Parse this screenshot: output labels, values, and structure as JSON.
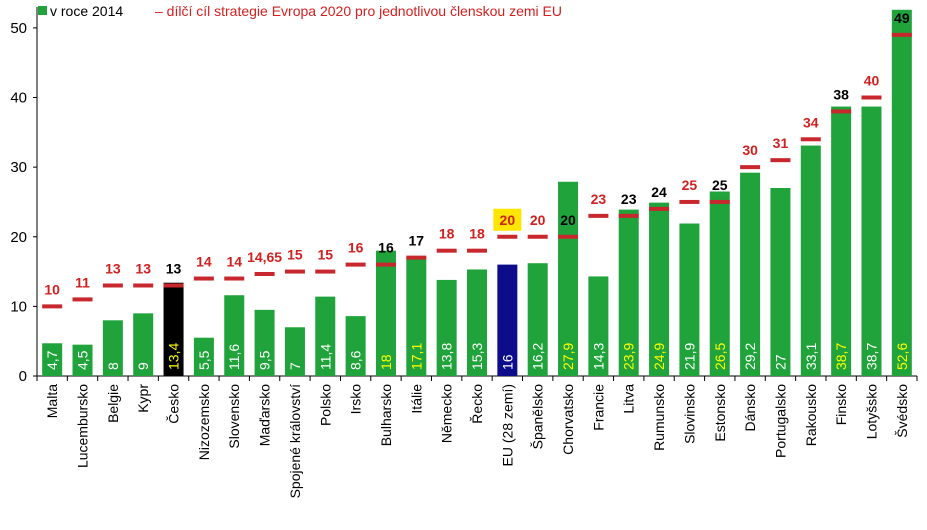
{
  "chart_data": {
    "type": "bar",
    "title": "",
    "xlabel": "",
    "ylabel": "",
    "ylim": [
      0,
      53
    ],
    "yticks": [
      "0",
      "10",
      "20",
      "30",
      "40",
      "50"
    ],
    "grid": false,
    "legend": {
      "position": "top-left",
      "series_label": "v roce 2014",
      "target_label": "– dílčí cíl strategie Evropa 2020 pro jednotlivou členskou zemi EU"
    },
    "categories": [
      "Malta",
      "Lucembursko",
      "Belgie",
      "Kypr",
      "Česko",
      "Nizozemsko",
      "Slovensko",
      "Maďarsko",
      "Spojené království",
      "Polsko",
      "Irsko",
      "Bulharsko",
      "Itálie",
      "Německo",
      "Řecko",
      "EU (28 zemí)",
      "Španělsko",
      "Chorvatsko",
      "Francie",
      "Litva",
      "Rumunsko",
      "Slovinsko",
      "Estonsko",
      "Dánsko",
      "Portugalsko",
      "Rakousko",
      "Finsko",
      "Lotyšsko",
      "Švédsko"
    ],
    "values": [
      4.7,
      4.5,
      8,
      9,
      13.4,
      5.5,
      11.6,
      9.5,
      7,
      11.4,
      8.6,
      18,
      17.1,
      13.8,
      15.3,
      16,
      16.2,
      27.9,
      14.3,
      23.9,
      24.9,
      21.9,
      26.5,
      29.2,
      27,
      33.1,
      38.7,
      38.7,
      52.6
    ],
    "value_labels": [
      "4,7",
      "4,5",
      "8",
      "9",
      "13,4",
      "5,5",
      "11,6",
      "9,5",
      "7",
      "11,4",
      "8,6",
      "18",
      "17,1",
      "13,8",
      "15,3",
      "16",
      "16,2",
      "27,9",
      "14,3",
      "23,9",
      "24,9",
      "21,9",
      "26,5",
      "29,2",
      "27",
      "33,1",
      "38,7",
      "38,7",
      "52,6"
    ],
    "targets": [
      10,
      11,
      13,
      13,
      13,
      14,
      14,
      14.65,
      15,
      15,
      16,
      16,
      17,
      18,
      18,
      20,
      20,
      20,
      23,
      23,
      24,
      25,
      25,
      30,
      31,
      34,
      38,
      40,
      49
    ],
    "target_labels": [
      "10",
      "11",
      "13",
      "13",
      "13",
      "14",
      "14",
      "14,65",
      "15",
      "15",
      "16",
      "16",
      "17",
      "18",
      "18",
      "20",
      "20",
      "20",
      "23",
      "23",
      "24",
      "25",
      "25",
      "30",
      "31",
      "34",
      "38",
      "40",
      "49"
    ],
    "target_reached": [
      false,
      false,
      false,
      false,
      true,
      false,
      false,
      false,
      false,
      false,
      false,
      true,
      true,
      false,
      false,
      false,
      false,
      true,
      false,
      true,
      true,
      false,
      true,
      false,
      false,
      false,
      true,
      false,
      true
    ],
    "highlight": {
      "4": "czech",
      "15": "eu"
    }
  },
  "colors": {
    "bar": "#1fa33a",
    "czech_bar": "#000000",
    "eu_bar": "#0d0d8c",
    "target_marker": "#c8282d",
    "target_label_red": "#d22020",
    "target_label_black": "#000000",
    "value_label_white": "#ffffff",
    "value_label_yellow": "#ffff00",
    "eu_target_box": "#ffe600"
  }
}
